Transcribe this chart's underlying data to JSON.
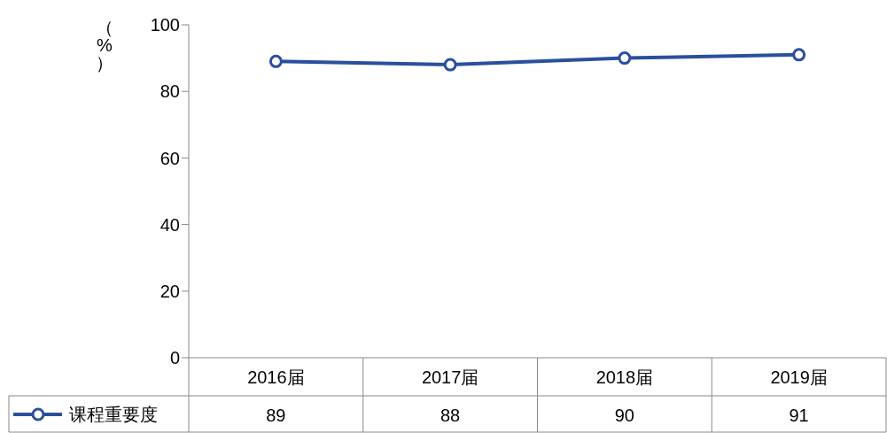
{
  "chart_data": {
    "type": "line",
    "ylabel": "（%）",
    "categories": [
      "2016届",
      "2017届",
      "2018届",
      "2019届"
    ],
    "series": [
      {
        "name": "课程重要度",
        "color": "#2a4f9e",
        "values": [
          89,
          88,
          90,
          91
        ]
      }
    ],
    "ylim": [
      0,
      100
    ],
    "yticks": [
      0,
      20,
      40,
      60,
      80,
      100
    ],
    "grid": false,
    "legend": "bottom left",
    "marker": "circle",
    "line_style": "solid",
    "data_labels": true
  }
}
